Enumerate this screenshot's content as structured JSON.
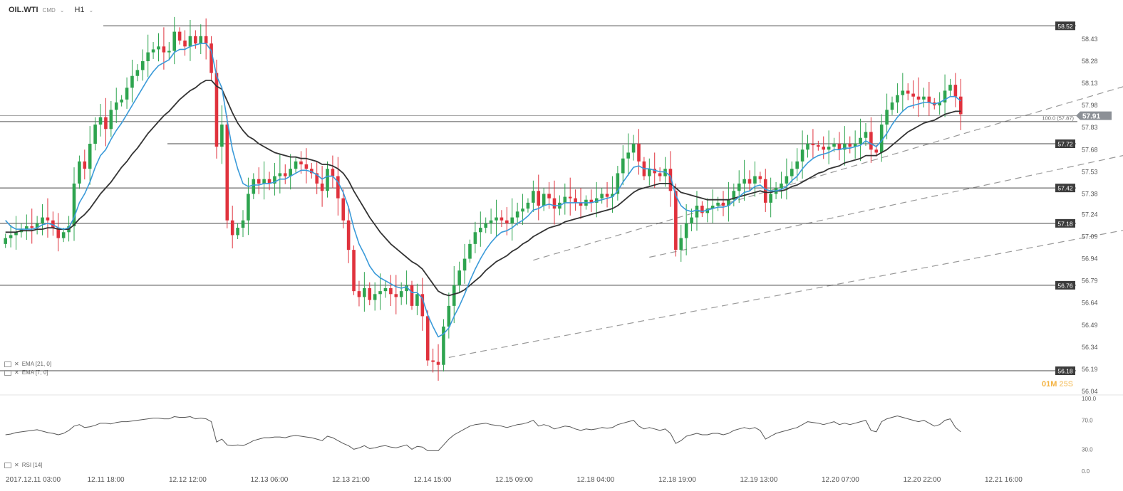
{
  "header": {
    "symbol": "OIL.WTI",
    "symbol_sub": "CMD",
    "timeframe": "H1"
  },
  "indicators": {
    "ema21": "EMA [21, 0]",
    "ema7": "EMA [7, 0]",
    "rsi": "RSI [14]"
  },
  "timer": {
    "minutes": "01M",
    "seconds": "25S"
  },
  "colors": {
    "bull": "#2ea44f",
    "bear": "#e0323d",
    "ema_fast": "#3a9ad9",
    "ema_slow": "#333333",
    "level_line": "#444444",
    "tag_bg": "#3c3c3c",
    "current_tag_bg": "#8c9096"
  },
  "chart_data": {
    "type": "candlestick",
    "price_axis_ticks": [
      "58.43",
      "58.28",
      "58.13",
      "57.98",
      "57.83",
      "57.68",
      "57.53",
      "57.38",
      "57.24",
      "57.09",
      "56.94",
      "56.79",
      "56.64",
      "56.49",
      "56.34",
      "56.19",
      "56.04"
    ],
    "price_range": [
      56.04,
      58.56
    ],
    "x_ticks": [
      "2017.12.11  03:00",
      "12.11  18:00",
      "12.12  12:00",
      "12.13  06:00",
      "12.13  21:00",
      "12.14  15:00",
      "12.15  09:00",
      "12.18  04:00",
      "12.18  19:00",
      "12.19  13:00",
      "12.20  07:00",
      "12.20  22:00",
      "12.21  16:00"
    ],
    "horizontal_levels": [
      58.52,
      57.72,
      57.42,
      57.18,
      56.76,
      56.18
    ],
    "current_price": "57.91",
    "fib_label": "100.0 (57.87)",
    "fib_level": 57.87,
    "rsi_ticks": [
      "100.0",
      "70.0",
      "30.0",
      "0.0"
    ],
    "rsi_range": [
      0,
      100
    ],
    "close": [
      57.08,
      57.1,
      57.12,
      57.14,
      57.16,
      57.15,
      57.18,
      57.22,
      57.2,
      57.15,
      57.08,
      57.12,
      57.16,
      57.45,
      57.6,
      57.55,
      57.72,
      57.85,
      57.9,
      57.82,
      57.95,
      58.0,
      58.02,
      58.1,
      58.18,
      58.22,
      58.28,
      58.34,
      58.36,
      58.38,
      58.34,
      58.35,
      58.48,
      58.42,
      58.38,
      58.45,
      58.4,
      58.45,
      58.4,
      58.2,
      57.7,
      57.85,
      57.2,
      57.1,
      57.15,
      57.2,
      57.38,
      57.48,
      57.45,
      57.48,
      57.45,
      57.5,
      57.52,
      57.5,
      57.55,
      57.6,
      57.58,
      57.55,
      57.52,
      57.45,
      57.4,
      57.55,
      57.5,
      57.35,
      57.2,
      57.0,
      56.72,
      56.68,
      56.74,
      56.66,
      56.7,
      56.72,
      56.74,
      56.7,
      56.68,
      56.72,
      56.76,
      56.62,
      56.7,
      56.55,
      56.25,
      56.24,
      56.22,
      56.48,
      56.62,
      56.76,
      56.86,
      56.94,
      57.04,
      57.12,
      57.15,
      57.18,
      57.2,
      57.22,
      57.2,
      57.18,
      57.22,
      57.26,
      57.28,
      57.32,
      57.4,
      57.3,
      57.38,
      57.35,
      57.28,
      57.32,
      57.36,
      57.35,
      57.32,
      57.3,
      57.34,
      57.32,
      57.35,
      57.38,
      57.36,
      57.38,
      57.52,
      57.62,
      57.66,
      57.72,
      57.6,
      57.5,
      57.55,
      57.52,
      57.5,
      57.55,
      57.4,
      57.0,
      57.08,
      57.18,
      57.22,
      57.3,
      57.25,
      57.28,
      57.3,
      57.32,
      57.3,
      57.34,
      57.4,
      57.45,
      57.48,
      57.45,
      57.5,
      57.48,
      57.32,
      57.38,
      57.42,
      57.45,
      57.5,
      57.55,
      57.6,
      57.68,
      57.72,
      57.71,
      57.7,
      57.68,
      57.7,
      57.72,
      57.68,
      57.72,
      57.7,
      57.72,
      57.76,
      57.8,
      57.68,
      57.66,
      57.85,
      57.95,
      58.0,
      58.05,
      58.08,
      58.06,
      58.04,
      58.02,
      58.04,
      58.0,
      57.98,
      58.0,
      58.08,
      58.12,
      58.04,
      57.92
    ],
    "ema_fast": [
      57.2,
      57.16,
      57.14,
      57.14,
      57.14,
      57.14,
      57.15,
      57.17,
      57.18,
      57.17,
      57.15,
      57.14,
      57.15,
      57.22,
      57.32,
      57.38,
      57.46,
      57.56,
      57.64,
      57.68,
      57.75,
      57.81,
      57.86,
      57.92,
      57.98,
      58.04,
      58.1,
      58.16,
      58.21,
      58.25,
      58.27,
      58.29,
      58.34,
      58.36,
      58.36,
      58.38,
      58.39,
      58.4,
      58.4,
      58.35,
      58.18,
      58.1,
      57.88,
      57.68,
      57.55,
      57.45,
      57.43,
      57.44,
      57.44,
      57.45,
      57.45,
      57.46,
      57.48,
      57.48,
      57.5,
      57.52,
      57.54,
      57.54,
      57.53,
      57.51,
      57.48,
      57.5,
      57.5,
      57.46,
      57.39,
      57.29,
      57.15,
      57.04,
      56.97,
      56.89,
      56.84,
      56.81,
      56.79,
      56.77,
      56.75,
      56.74,
      56.75,
      56.71,
      56.71,
      56.67,
      56.56,
      56.48,
      56.41,
      56.43,
      56.47,
      56.55,
      56.62,
      56.7,
      56.79,
      56.87,
      56.94,
      57.0,
      57.05,
      57.09,
      57.12,
      57.13,
      57.15,
      57.18,
      57.2,
      57.23,
      57.27,
      57.28,
      57.3,
      57.31,
      57.3,
      57.3,
      57.32,
      57.32,
      57.32,
      57.32,
      57.32,
      57.32,
      57.33,
      57.34,
      57.35,
      57.36,
      57.4,
      57.46,
      57.51,
      57.56,
      57.57,
      57.55,
      57.55,
      57.54,
      57.53,
      57.53,
      57.5,
      57.37,
      57.3,
      57.27,
      57.26,
      57.27,
      57.26,
      57.27,
      57.28,
      57.29,
      57.29,
      57.3,
      57.33,
      57.36,
      57.39,
      57.4,
      57.43,
      57.44,
      57.41,
      57.4,
      57.4,
      57.41,
      57.43,
      57.47,
      57.5,
      57.55,
      57.59,
      57.62,
      57.64,
      57.65,
      57.66,
      57.68,
      57.68,
      57.69,
      57.69,
      57.7,
      57.71,
      57.74,
      57.72,
      57.7,
      57.74,
      57.79,
      57.85,
      57.9,
      57.94,
      57.97,
      57.98,
      57.99,
      58.0,
      58.0,
      57.99,
      58.0,
      58.02,
      58.04,
      58.04,
      58.01
    ],
    "ema_slow": [
      57.12,
      57.12,
      57.12,
      57.13,
      57.13,
      57.13,
      57.14,
      57.14,
      57.15,
      57.15,
      57.14,
      57.14,
      57.14,
      57.17,
      57.21,
      57.24,
      57.28,
      57.33,
      57.38,
      57.42,
      57.46,
      57.51,
      57.56,
      57.6,
      57.65,
      57.69,
      57.74,
      57.79,
      57.83,
      57.87,
      57.91,
      57.94,
      57.98,
      58.02,
      58.05,
      58.08,
      58.1,
      58.13,
      58.15,
      58.15,
      58.11,
      58.09,
      58.01,
      57.93,
      57.86,
      57.81,
      57.77,
      57.75,
      57.72,
      57.7,
      57.68,
      57.66,
      57.65,
      57.64,
      57.63,
      57.63,
      57.62,
      57.62,
      57.61,
      57.6,
      57.58,
      57.58,
      57.57,
      57.55,
      57.52,
      57.47,
      57.4,
      57.34,
      57.28,
      57.22,
      57.17,
      57.12,
      57.08,
      57.04,
      57.01,
      56.98,
      56.95,
      56.92,
      56.9,
      56.87,
      56.82,
      56.77,
      56.72,
      56.7,
      56.69,
      56.7,
      56.71,
      56.73,
      56.76,
      56.79,
      56.82,
      56.86,
      56.89,
      56.92,
      56.94,
      56.96,
      56.99,
      57.01,
      57.04,
      57.06,
      57.09,
      57.11,
      57.13,
      57.15,
      57.16,
      57.17,
      57.19,
      57.2,
      57.21,
      57.22,
      57.23,
      57.24,
      57.25,
      57.26,
      57.27,
      57.28,
      57.3,
      57.33,
      57.36,
      57.39,
      57.41,
      57.42,
      57.43,
      57.44,
      57.45,
      57.45,
      57.45,
      57.42,
      57.39,
      57.38,
      57.37,
      57.36,
      57.35,
      57.34,
      57.34,
      57.34,
      57.34,
      57.34,
      57.35,
      57.36,
      57.37,
      57.38,
      57.39,
      57.4,
      57.39,
      57.39,
      57.4,
      57.4,
      57.41,
      57.43,
      57.44,
      57.46,
      57.48,
      57.5,
      57.52,
      57.53,
      57.55,
      57.56,
      57.57,
      57.59,
      57.6,
      57.61,
      57.62,
      57.64,
      57.64,
      57.64,
      57.66,
      57.68,
      57.71,
      57.74,
      57.77,
      57.8,
      57.82,
      57.84,
      57.86,
      57.87,
      57.88,
      57.9,
      57.92,
      57.93,
      57.94,
      57.94
    ],
    "rsi": [
      50,
      51,
      53,
      54,
      55,
      56,
      57,
      55,
      53,
      52,
      50,
      52,
      56,
      62,
      64,
      60,
      61,
      63,
      66,
      66,
      65,
      67,
      68,
      68,
      69,
      70,
      71,
      72,
      73,
      73,
      72,
      72,
      75,
      74,
      74,
      75,
      72,
      73,
      72,
      68,
      40,
      44,
      36,
      35,
      36,
      35,
      38,
      42,
      44,
      46,
      46,
      47,
      47,
      46,
      48,
      49,
      48,
      47,
      46,
      44,
      42,
      48,
      46,
      42,
      38,
      35,
      30,
      32,
      35,
      31,
      32,
      34,
      35,
      33,
      32,
      34,
      36,
      30,
      34,
      33,
      28,
      28,
      28,
      36,
      44,
      50,
      54,
      58,
      62,
      64,
      65,
      66,
      64,
      63,
      62,
      60,
      62,
      64,
      65,
      67,
      70,
      62,
      64,
      62,
      58,
      60,
      62,
      61,
      58,
      56,
      58,
      57,
      58,
      60,
      59,
      60,
      64,
      66,
      68,
      70,
      62,
      58,
      60,
      58,
      56,
      58,
      52,
      38,
      42,
      48,
      50,
      52,
      50,
      50,
      52,
      52,
      50,
      52,
      56,
      58,
      60,
      58,
      60,
      56,
      44,
      48,
      52,
      54,
      56,
      58,
      60,
      64,
      68,
      67,
      66,
      64,
      66,
      68,
      64,
      66,
      64,
      66,
      68,
      70,
      56,
      54,
      68,
      72,
      74,
      76,
      74,
      72,
      70,
      68,
      70,
      66,
      62,
      64,
      70,
      72,
      60,
      54
    ]
  }
}
